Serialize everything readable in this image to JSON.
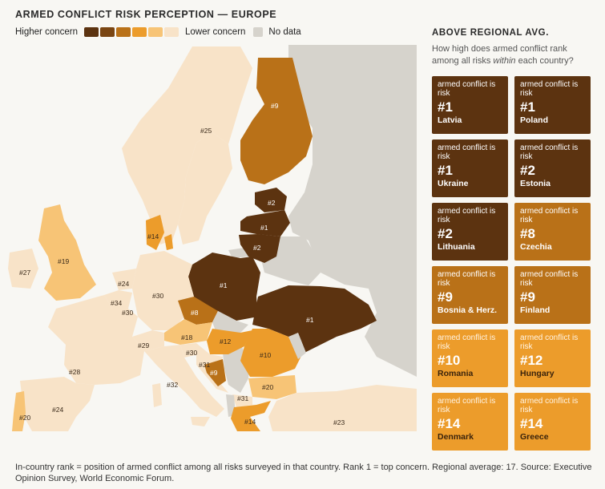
{
  "title": "ARMED CONFLICT RISK PERCEPTION — EUROPE",
  "legend": {
    "high_label": "Higher concern",
    "low_label": "Lower concern",
    "nodata_label": "No data",
    "colors": [
      "#5c3310",
      "#7a4512",
      "#b97118",
      "#ec9c2b",
      "#f7c476",
      "#f8e3c8"
    ],
    "nodata_color": "#d6d3cc"
  },
  "panel": {
    "title": "ABOVE REGIONAL AVG.",
    "subtitle_pre": "How high does armed conflict rank among all risks ",
    "subtitle_em": "within",
    "subtitle_post": " each country?",
    "cards": [
      {
        "kicker": "armed conflict is risk",
        "rank": "#1",
        "country": "Latvia",
        "color": "#5c3310"
      },
      {
        "kicker": "armed conflict is risk",
        "rank": "#1",
        "country": "Poland",
        "color": "#5c3310"
      },
      {
        "kicker": "armed conflict is risk",
        "rank": "#1",
        "country": "Ukraine",
        "color": "#5c3310"
      },
      {
        "kicker": "armed conflict is risk",
        "rank": "#2",
        "country": "Estonia",
        "color": "#5c3310"
      },
      {
        "kicker": "armed conflict is risk",
        "rank": "#2",
        "country": "Lithuania",
        "color": "#5c3310"
      },
      {
        "kicker": "armed conflict is risk",
        "rank": "#8",
        "country": "Czechia",
        "color": "#b97118"
      },
      {
        "kicker": "armed conflict is risk",
        "rank": "#9",
        "country": "Bosnia & Herz.",
        "color": "#b97118"
      },
      {
        "kicker": "armed conflict is risk",
        "rank": "#9",
        "country": "Finland",
        "color": "#b97118"
      },
      {
        "kicker": "armed conflict is risk",
        "rank": "#10",
        "country": "Romania",
        "color": "#ec9c2b"
      },
      {
        "kicker": "armed conflict is risk",
        "rank": "#12",
        "country": "Hungary",
        "color": "#ec9c2b"
      },
      {
        "kicker": "armed conflict is risk",
        "rank": "#14",
        "country": "Denmark",
        "color": "#ec9c2b"
      },
      {
        "kicker": "armed conflict is risk",
        "rank": "#14",
        "country": "Greece",
        "color": "#ec9c2b"
      }
    ]
  },
  "map_labels": {
    "finland": "#9",
    "norway": "#25",
    "estonia": "#2",
    "latvia": "#1",
    "lithuania": "#2",
    "denmark": "#14",
    "poland": "#1",
    "ukraine": "#1",
    "ireland": "#27",
    "uk": "#19",
    "netherlands": "#24",
    "belgium": "#34",
    "luxembourg": "#30",
    "germany": "#30",
    "czechia": "#8",
    "switzerland": "#29",
    "austria": "#18",
    "slovenia": "#30",
    "hungary": "#12",
    "romania": "#10",
    "croatia": "#31",
    "bosnia": "#9",
    "france": "#28",
    "italy": "#32",
    "bulgaria": "#20",
    "macedonia": "#31",
    "greece": "#14",
    "portugal": "#20",
    "spain": "#24",
    "turkey": "#23"
  },
  "footer": "In-country rank = position of armed conflict among all risks surveyed in that country. Rank 1 = top concern. Regional average: 17. Source: Executive Opinion Survey, World Economic Forum."
}
